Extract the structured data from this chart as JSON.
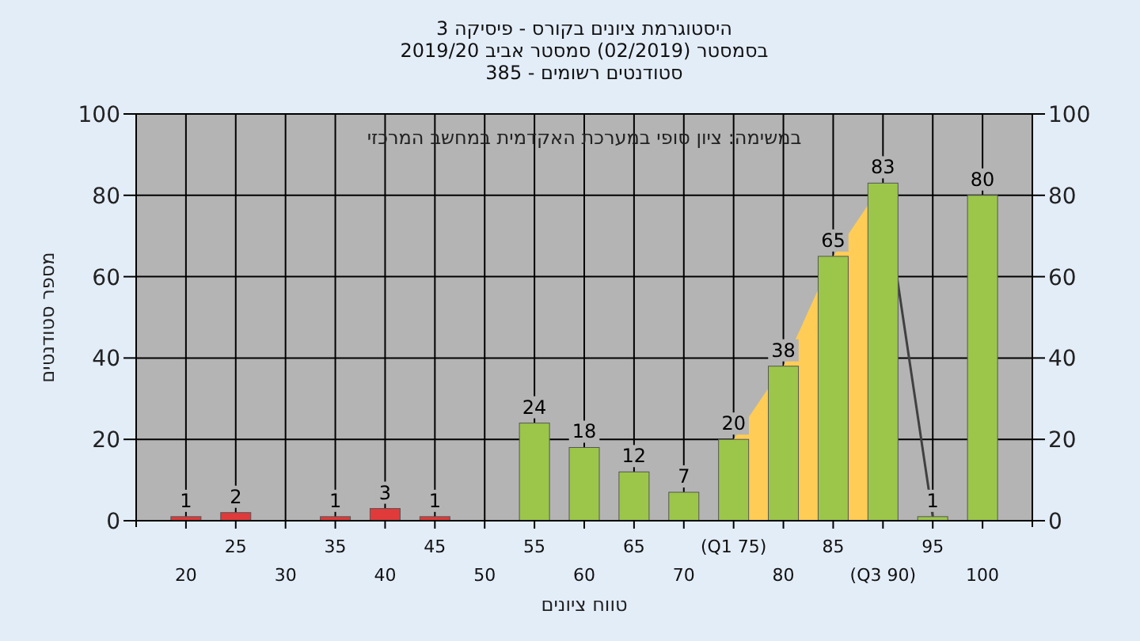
{
  "chart_data": {
    "type": "bar",
    "title": "היסטוגרמת ציונים בקורס - פיסיקה 3",
    "subtitle": [
      "בסמסטר  (02/2019)  סמסטר אביב 2019/20",
      "סטודנטים רשומים - 385"
    ],
    "annotations": [
      "במשימה: ציון סופי במערכת האקדמית במחשב המרכזי"
    ],
    "xlabel": "טווח ציונים",
    "ylabel": "מספר סטודנטים",
    "categories": [
      "20",
      "25",
      "30",
      "35",
      "40",
      "45",
      "50",
      "55",
      "60",
      "65",
      "70",
      "(Q1 75)",
      "80",
      "85",
      "(Q3 90)",
      "95",
      "100"
    ],
    "series": [
      {
        "type": "area",
        "color": "#ffcc55",
        "values": [
          null,
          null,
          null,
          null,
          null,
          null,
          null,
          null,
          null,
          null,
          null,
          20,
          38,
          65,
          83,
          null,
          null
        ]
      },
      {
        "type": "line",
        "color": "#404040",
        "values": [
          null,
          null,
          null,
          null,
          null,
          null,
          null,
          null,
          null,
          null,
          null,
          null,
          null,
          null,
          83,
          1,
          null
        ]
      },
      {
        "colors": [
          "#e03a3a",
          "#e03a3a",
          "#e03a3a",
          "#e03a3a",
          "#e03a3a",
          "#e03a3a",
          "#e03a3a",
          "#9cc64a",
          "#9cc64a",
          "#9cc64a",
          "#9cc64a",
          "#9cc64a",
          "#9cc64a",
          "#9cc64a",
          "#9cc64a",
          "#9cc64a",
          "#9cc64a"
        ],
        "values": [
          1,
          2,
          null,
          1,
          3,
          1,
          null,
          24,
          18,
          12,
          7,
          20,
          38,
          65,
          83,
          1,
          80
        ],
        "data_labels": true
      }
    ],
    "ylim": [
      0,
      100
    ],
    "yticks": [
      0,
      20,
      40,
      60,
      80,
      100
    ],
    "y2lim": [
      0,
      100
    ],
    "y2ticks": [
      0,
      20,
      40,
      60,
      80,
      100
    ],
    "grid": true
  }
}
